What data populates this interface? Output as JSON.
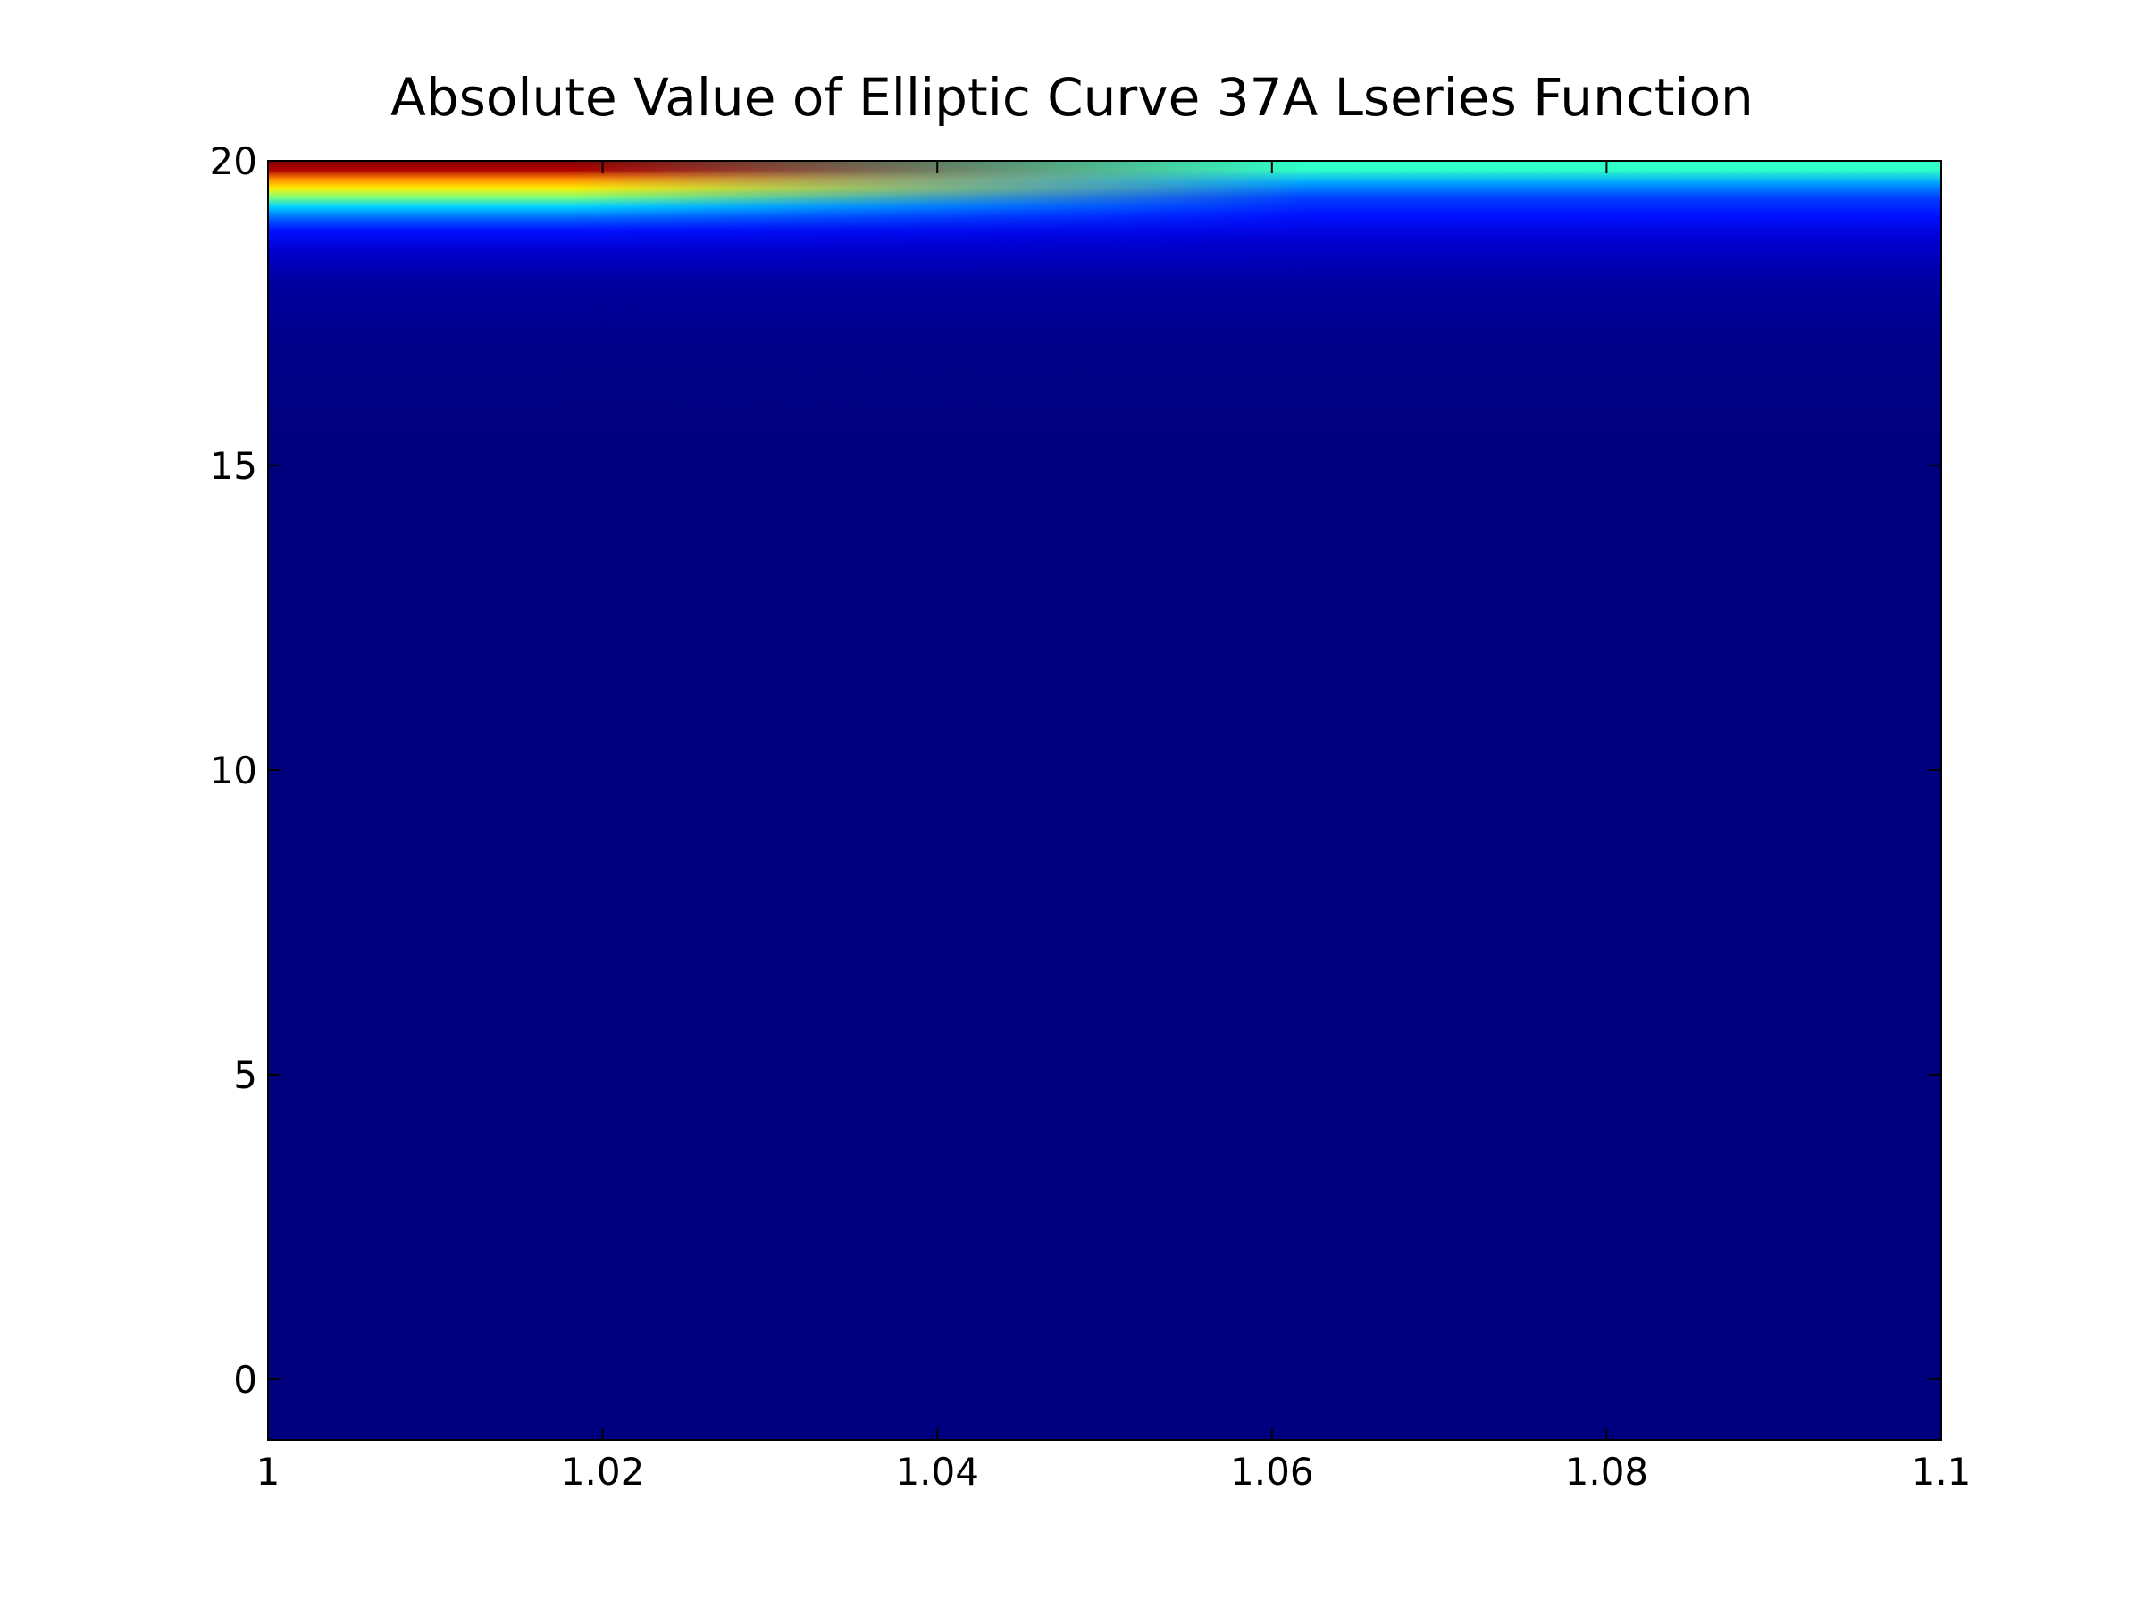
{
  "chart_data": {
    "type": "heatmap",
    "title": "Absolute Value of Elliptic Curve 37A Lseries Function",
    "xlabel": "",
    "ylabel": "",
    "xlim": [
      1.0,
      1.1
    ],
    "ylim": [
      -1.0,
      20.0
    ],
    "x_ticks": [
      {
        "value": 1.0,
        "label": "1"
      },
      {
        "value": 1.02,
        "label": "1.02"
      },
      {
        "value": 1.04,
        "label": "1.04"
      },
      {
        "value": 1.06,
        "label": "1.06"
      },
      {
        "value": 1.08,
        "label": "1.08"
      },
      {
        "value": 1.1,
        "label": "1.1"
      }
    ],
    "y_ticks": [
      {
        "value": 0,
        "label": "0"
      },
      {
        "value": 5,
        "label": "5"
      },
      {
        "value": 10,
        "label": "10"
      },
      {
        "value": 15,
        "label": "15"
      },
      {
        "value": 20,
        "label": "20"
      }
    ],
    "colormap": "jet",
    "grid": false,
    "legend": "none",
    "color_profile_left": [
      {
        "y": 20.0,
        "color": "#800000"
      },
      {
        "y": 19.85,
        "color": "#b00000"
      },
      {
        "y": 19.7,
        "color": "#ff8c00"
      },
      {
        "y": 19.55,
        "color": "#ffee00"
      },
      {
        "y": 19.4,
        "color": "#7dff7a"
      },
      {
        "y": 19.25,
        "color": "#00d4ff"
      },
      {
        "y": 19.05,
        "color": "#0060ff"
      },
      {
        "y": 18.85,
        "color": "#0010ff"
      },
      {
        "y": 18.5,
        "color": "#0000cc"
      },
      {
        "y": 18.0,
        "color": "#0000a0"
      },
      {
        "y": 17.0,
        "color": "#00008a"
      },
      {
        "y": 15.5,
        "color": "#00007f"
      },
      {
        "y": -1.0,
        "color": "#00007f"
      }
    ],
    "color_profile_right": [
      {
        "y": 20.0,
        "color": "#30ffc8"
      },
      {
        "y": 19.85,
        "color": "#30ffc8"
      },
      {
        "y": 19.65,
        "color": "#00a8ff"
      },
      {
        "y": 19.4,
        "color": "#0040ff"
      },
      {
        "y": 19.1,
        "color": "#0010ff"
      },
      {
        "y": 18.7,
        "color": "#0000d0"
      },
      {
        "y": 18.0,
        "color": "#0000a0"
      },
      {
        "y": 17.0,
        "color": "#00008a"
      },
      {
        "y": 15.5,
        "color": "#00007f"
      },
      {
        "y": -1.0,
        "color": "#00007f"
      }
    ],
    "axis_color": "#000000"
  }
}
